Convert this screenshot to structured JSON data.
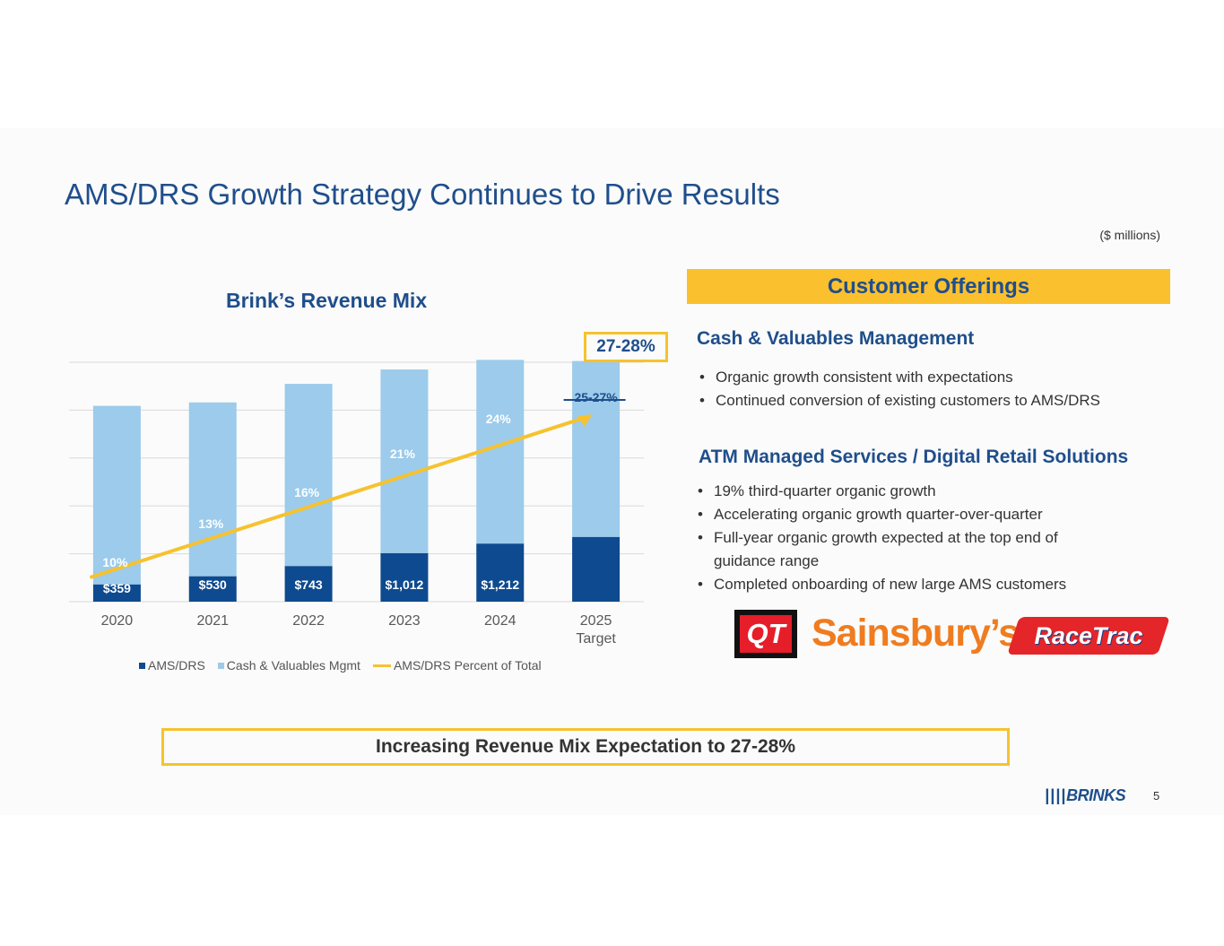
{
  "header": {
    "title": "AMS/DRS Growth Strategy Continues to Drive Results",
    "units": "($ millions)"
  },
  "chart_data": {
    "type": "bar",
    "stacked": true,
    "title": "Brink’s Revenue Mix",
    "categories": [
      "2020",
      "2021",
      "2022",
      "2023",
      "2024",
      "2025\nTarget"
    ],
    "category_labels": [
      [
        "2020"
      ],
      [
        "2021"
      ],
      [
        "2022"
      ],
      [
        "2023"
      ],
      [
        "2024"
      ],
      [
        "2025",
        "Target"
      ]
    ],
    "series": [
      {
        "name": "AMS/DRS",
        "color": "#0e4a8f",
        "values": [
          359,
          530,
          743,
          1012,
          1212,
          1350
        ],
        "labels": [
          "$359",
          "$530",
          "$743",
          "$1,012",
          "$1,212",
          ""
        ]
      },
      {
        "name": "Cash & Valuables Mgmt",
        "color": "#9ccbeb",
        "values": [
          3731,
          3631,
          3806,
          3837,
          3838,
          3675
        ]
      }
    ],
    "line_series": {
      "name": "AMS/DRS Percent of Total",
      "color": "#f6c22e",
      "values": [
        10,
        13,
        16,
        21,
        24,
        26
      ],
      "labels": [
        "10%",
        "13%",
        "16%",
        "21%",
        "24%",
        "25-27%"
      ]
    },
    "ylim": [
      0,
      5000
    ],
    "gridlines": [
      1000,
      2000,
      3000,
      4000,
      5000
    ],
    "callout": "27-28%",
    "legend_position": "bottom"
  },
  "offerings": {
    "header": "Customer Offerings",
    "cvm_title": "Cash & Valuables Management",
    "cvm_bullets": [
      "Organic growth consistent with expectations",
      "Continued conversion of existing customers to AMS/DRS"
    ],
    "atm_title": "ATM Managed Services / Digital Retail Solutions",
    "atm_bullets": [
      "19% third-quarter organic growth",
      "Accelerating organic growth quarter-over-quarter",
      "Full-year organic growth expected at the top end of guidance range",
      "Completed onboarding of new large AMS customers"
    ]
  },
  "logos": {
    "qt": "QT",
    "sainsburys": "Sainsbury’s",
    "racetrac": "RaceTrac"
  },
  "footer": {
    "banner": "Increasing Revenue Mix Expectation to 27-28%",
    "brand": "BRINKS",
    "page": "5"
  }
}
